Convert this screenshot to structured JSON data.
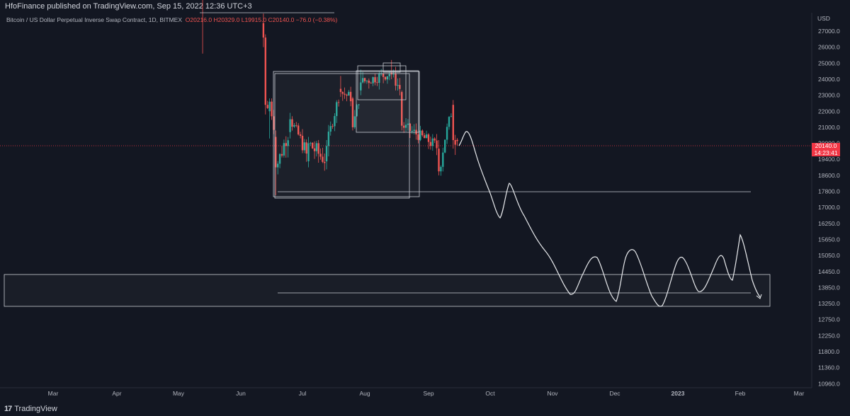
{
  "header": {
    "publisher_text": "HfoFinance published on TradingView.com, Sep 15, 2022 12:36 UTC+3"
  },
  "symbol": {
    "name": "Bitcoin / US Dollar Perpetual Inverse Swap Contract, 1D, BITMEX",
    "open": "O20216.0",
    "high": "H20329.0",
    "low": "L19915.0",
    "close": "C20140.0",
    "change": "−76.0 (−0.38%)"
  },
  "price_tag": {
    "price": "20140.0",
    "countdown": "14:23:41"
  },
  "footer": {
    "logo_mark": "17",
    "logo_text": "TradingView"
  },
  "colors": {
    "background": "#131722",
    "up": "#26a69a",
    "down": "#ef5350",
    "last_price": "#f23645",
    "drawing": "#e0e3eb"
  },
  "chart_data": {
    "type": "candlestick",
    "interval": "1D",
    "y_axis_label": "USD",
    "y_ticks": [
      "27000.0",
      "26000.0",
      "25000.0",
      "24000.0",
      "23000.0",
      "22000.0",
      "21000.0",
      "20000.0",
      "19400.0",
      "18600.0",
      "17800.0",
      "17000.0",
      "16250.0",
      "15650.0",
      "15050.0",
      "14450.0",
      "13850.0",
      "13250.0",
      "12750.0",
      "12250.0",
      "11800.0",
      "11360.0",
      "10960.0"
    ],
    "x_ticks": [
      "Mar",
      "Apr",
      "May",
      "Jun",
      "Jul",
      "Aug",
      "Sep",
      "Oct",
      "Nov",
      "Dec",
      "2023",
      "Feb",
      "Mar"
    ],
    "last_price": 20140.0,
    "approx_ohlc": [
      {
        "date": "2022-05-13",
        "open": 29500,
        "high": 30200,
        "low": 25600,
        "close": 29300
      },
      {
        "date": "2022-06-12",
        "open": 27500,
        "high": 28100,
        "low": 26000,
        "close": 26600
      },
      {
        "date": "2022-06-13",
        "open": 26600,
        "high": 26800,
        "low": 21800,
        "close": 22400
      },
      {
        "date": "2022-06-15",
        "open": 22000,
        "high": 22800,
        "low": 20300,
        "close": 22600
      },
      {
        "date": "2022-06-18",
        "open": 20400,
        "high": 20800,
        "low": 17600,
        "close": 19000
      },
      {
        "date": "2022-06-25",
        "open": 20700,
        "high": 21900,
        "low": 20300,
        "close": 21500
      },
      {
        "date": "2022-07-04",
        "open": 19300,
        "high": 20400,
        "low": 19000,
        "close": 20000
      },
      {
        "date": "2022-07-13",
        "open": 19300,
        "high": 20200,
        "low": 18900,
        "close": 19900
      },
      {
        "date": "2022-07-20",
        "open": 23400,
        "high": 24200,
        "low": 22900,
        "close": 23200
      },
      {
        "date": "2022-07-26",
        "open": 22800,
        "high": 22900,
        "low": 20800,
        "close": 21000
      },
      {
        "date": "2022-07-30",
        "open": 23300,
        "high": 24600,
        "low": 23000,
        "close": 23800
      },
      {
        "date": "2022-08-14",
        "open": 24400,
        "high": 25200,
        "low": 24000,
        "close": 24300
      },
      {
        "date": "2022-08-19",
        "open": 23200,
        "high": 23300,
        "low": 20800,
        "close": 21100
      },
      {
        "date": "2022-09-06",
        "open": 19800,
        "high": 20200,
        "low": 18600,
        "close": 18800
      },
      {
        "date": "2022-09-13",
        "open": 22400,
        "high": 22700,
        "low": 19800,
        "close": 20200
      },
      {
        "date": "2022-09-15",
        "open": 20216,
        "high": 20329,
        "low": 19915,
        "close": 20140
      }
    ],
    "drawings": {
      "rectangles": [
        {
          "from": "2022-06-19",
          "to": "2022-08-22",
          "low": 17700,
          "high": 24400
        },
        {
          "from": "2022-08-01",
          "to": "2022-08-27",
          "low": 20900,
          "high": 24400
        },
        {
          "from": "2022-08-01",
          "to": "2022-08-24",
          "low": 22600,
          "high": 24600
        },
        {
          "from": "2022-08-12",
          "to": "2022-08-20",
          "low": 24500,
          "high": 25000
        },
        {
          "from": "2022-02-01",
          "to": "2023-02-18",
          "low": 13300,
          "high": 14550
        }
      ],
      "horizontal_lines": [
        17900,
        13900
      ],
      "projected_path": "hand-drawn forecast from ~20000 (mid Sep 2022) down through ~17000 (Oct) to oscillate between ~13500 and ~16000 (Nov 2022 – Feb 2023), ending with an arrow near 13600"
    }
  }
}
